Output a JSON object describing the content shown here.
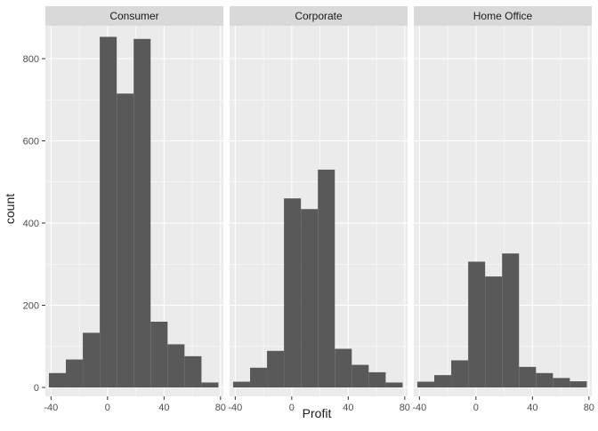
{
  "chart_data": {
    "type": "bar",
    "xlabel": "Profit",
    "ylabel": "count",
    "xlim": [
      -44,
      82
    ],
    "ylim": [
      0,
      880
    ],
    "x_ticks": [
      -40,
      0,
      40,
      80
    ],
    "x_tick_labels": [
      "-40",
      "0",
      "40",
      "80"
    ],
    "y_ticks": [
      0,
      200,
      400,
      600,
      800
    ],
    "y_tick_labels": [
      "0",
      "200",
      "400",
      "600",
      "800"
    ],
    "bin_edges": [
      -41.5,
      -29.5,
      -17.5,
      -5.5,
      6.5,
      18.5,
      30.5,
      42.5,
      54.5,
      66.5,
      78.5
    ],
    "grid": true,
    "legend": "none",
    "colors": {
      "bar": "#595959",
      "panel_bg": "#ebebeb",
      "strip_bg": "#d9d9d9",
      "grid_major": "#ffffff",
      "text": "#4d4d4d",
      "title_text": "#1a1a1a"
    },
    "facets": [
      {
        "name": "Consumer",
        "counts": [
          35,
          68,
          133,
          853,
          715,
          848,
          160,
          105,
          76,
          12
        ]
      },
      {
        "name": "Corporate",
        "counts": [
          14,
          48,
          89,
          460,
          434,
          530,
          94,
          55,
          37,
          12
        ]
      },
      {
        "name": "Home Office",
        "counts": [
          14,
          30,
          66,
          306,
          270,
          326,
          50,
          35,
          23,
          15
        ]
      }
    ]
  }
}
